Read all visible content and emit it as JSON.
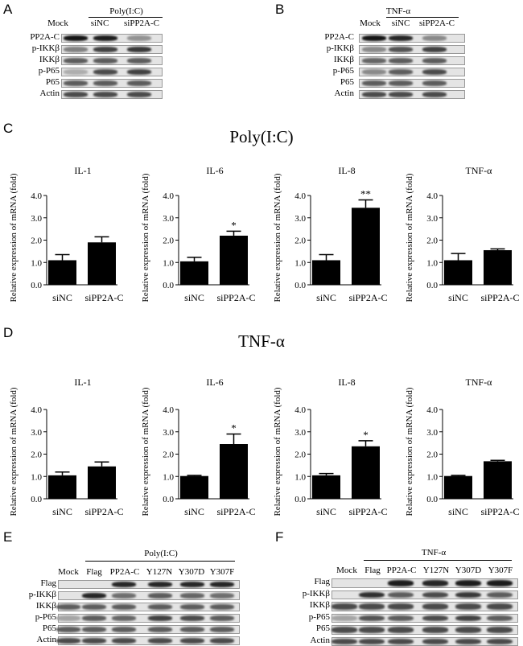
{
  "panels": {
    "A": "A",
    "B": "B",
    "C": "C",
    "D": "D",
    "E": "E",
    "F": "F"
  },
  "blot_A": {
    "treatment": "Poly(I:C)",
    "columns": [
      "Mock",
      "siNC",
      "siPP2A-C"
    ],
    "rows": [
      "PP2A-C",
      "p-IKKβ",
      "IKKβ",
      "p-P65",
      "P65",
      "Actin"
    ]
  },
  "blot_B": {
    "treatment": "TNF-α",
    "columns": [
      "Mock",
      "siNC",
      "siPP2A-C"
    ],
    "rows": [
      "PP2A-C",
      "p-IKKβ",
      "IKKβ",
      "p-P65",
      "P65",
      "Actin"
    ]
  },
  "section_C": {
    "title": "Poly(I:C)"
  },
  "section_D": {
    "title": "TNF-α"
  },
  "blot_E": {
    "treatment": "Poly(I:C)",
    "columns": [
      "Mock",
      "Flag",
      "PP2A-C",
      "Y127N",
      "Y307D",
      "Y307F"
    ],
    "rows": [
      "Flag",
      "p-IKKβ",
      "IKKβ",
      "p-P65",
      "P65",
      "Actin"
    ]
  },
  "blot_F": {
    "treatment": "TNF-α",
    "columns": [
      "Mock",
      "Flag",
      "PP2A-C",
      "Y127N",
      "Y307D",
      "Y307F"
    ],
    "rows": [
      "Flag",
      "p-IKKβ",
      "IKKβ",
      "p-P65",
      "P65",
      "Actin"
    ]
  },
  "chart_data": [
    {
      "type": "bar",
      "title": "IL-1",
      "group": "Poly(I:C)",
      "categories": [
        "siNC",
        "siPP2A-C"
      ],
      "values": [
        1.1,
        1.9
      ],
      "errors": [
        0.25,
        0.25
      ],
      "sig": [
        "",
        ""
      ],
      "ylabel": "Relative expression of mRNA (fold)",
      "ylim": [
        0,
        4
      ],
      "yticks": [
        "0.0",
        "1.0",
        "2.0",
        "3.0",
        "4.0"
      ]
    },
    {
      "type": "bar",
      "title": "IL-6",
      "group": "Poly(I:C)",
      "categories": [
        "siNC",
        "siPP2A-C"
      ],
      "values": [
        1.05,
        2.2
      ],
      "errors": [
        0.18,
        0.2
      ],
      "sig": [
        "",
        "*"
      ],
      "ylabel": "Relative expression of mRNA (fold)",
      "ylim": [
        0,
        4
      ],
      "yticks": [
        "0.0",
        "1.0",
        "2.0",
        "3.0",
        "4.0"
      ]
    },
    {
      "type": "bar",
      "title": "IL-8",
      "group": "Poly(I:C)",
      "categories": [
        "siNC",
        "siPP2A-C"
      ],
      "values": [
        1.1,
        3.45
      ],
      "errors": [
        0.25,
        0.35
      ],
      "sig": [
        "",
        "**"
      ],
      "ylabel": "Relative expression of mRNA (fold)",
      "ylim": [
        0,
        4
      ],
      "yticks": [
        "0.0",
        "1.0",
        "2.0",
        "3.0",
        "4.0"
      ]
    },
    {
      "type": "bar",
      "title": "TNF-α",
      "group": "Poly(I:C)",
      "categories": [
        "siNC",
        "siPP2A-C"
      ],
      "values": [
        1.1,
        1.55
      ],
      "errors": [
        0.3,
        0.06
      ],
      "sig": [
        "",
        ""
      ],
      "ylabel": "Relative expression of mRNA (fold)",
      "ylim": [
        0,
        4
      ],
      "yticks": [
        "0.0",
        "1.0",
        "2.0",
        "3.0",
        "4.0"
      ]
    },
    {
      "type": "bar",
      "title": "IL-1",
      "group": "TNF-α",
      "categories": [
        "siNC",
        "siPP2A-C"
      ],
      "values": [
        1.05,
        1.45
      ],
      "errors": [
        0.15,
        0.2
      ],
      "sig": [
        "",
        ""
      ],
      "ylabel": "Relative expression of mRNA (fold)",
      "ylim": [
        0,
        4
      ],
      "yticks": [
        "0.0",
        "1.0",
        "2.0",
        "3.0",
        "4.0"
      ]
    },
    {
      "type": "bar",
      "title": "IL-6",
      "group": "TNF-α",
      "categories": [
        "siNC",
        "siPP2A-C"
      ],
      "values": [
        1.02,
        2.45
      ],
      "errors": [
        0.03,
        0.45
      ],
      "sig": [
        "",
        "*"
      ],
      "ylabel": "Relative expression of mRNA (fold)",
      "ylim": [
        0,
        4
      ],
      "yticks": [
        "0.0",
        "1.0",
        "2.0",
        "3.0",
        "4.0"
      ]
    },
    {
      "type": "bar",
      "title": "IL-8",
      "group": "TNF-α",
      "categories": [
        "siNC",
        "siPP2A-C"
      ],
      "values": [
        1.05,
        2.35
      ],
      "errors": [
        0.08,
        0.25
      ],
      "sig": [
        "",
        "*"
      ],
      "ylabel": "Relative expression of mRNA (fold)",
      "ylim": [
        0,
        4
      ],
      "yticks": [
        "0.0",
        "1.0",
        "2.0",
        "3.0",
        "4.0"
      ]
    },
    {
      "type": "bar",
      "title": "TNF-α",
      "group": "TNF-α",
      "categories": [
        "siNC",
        "siPP2A-C"
      ],
      "values": [
        1.02,
        1.68
      ],
      "errors": [
        0.03,
        0.04
      ],
      "sig": [
        "",
        ""
      ],
      "ylabel": "Relative expression of mRNA (fold)",
      "ylim": [
        0,
        4
      ],
      "yticks": [
        "0.0",
        "1.0",
        "2.0",
        "3.0",
        "4.0"
      ]
    }
  ]
}
